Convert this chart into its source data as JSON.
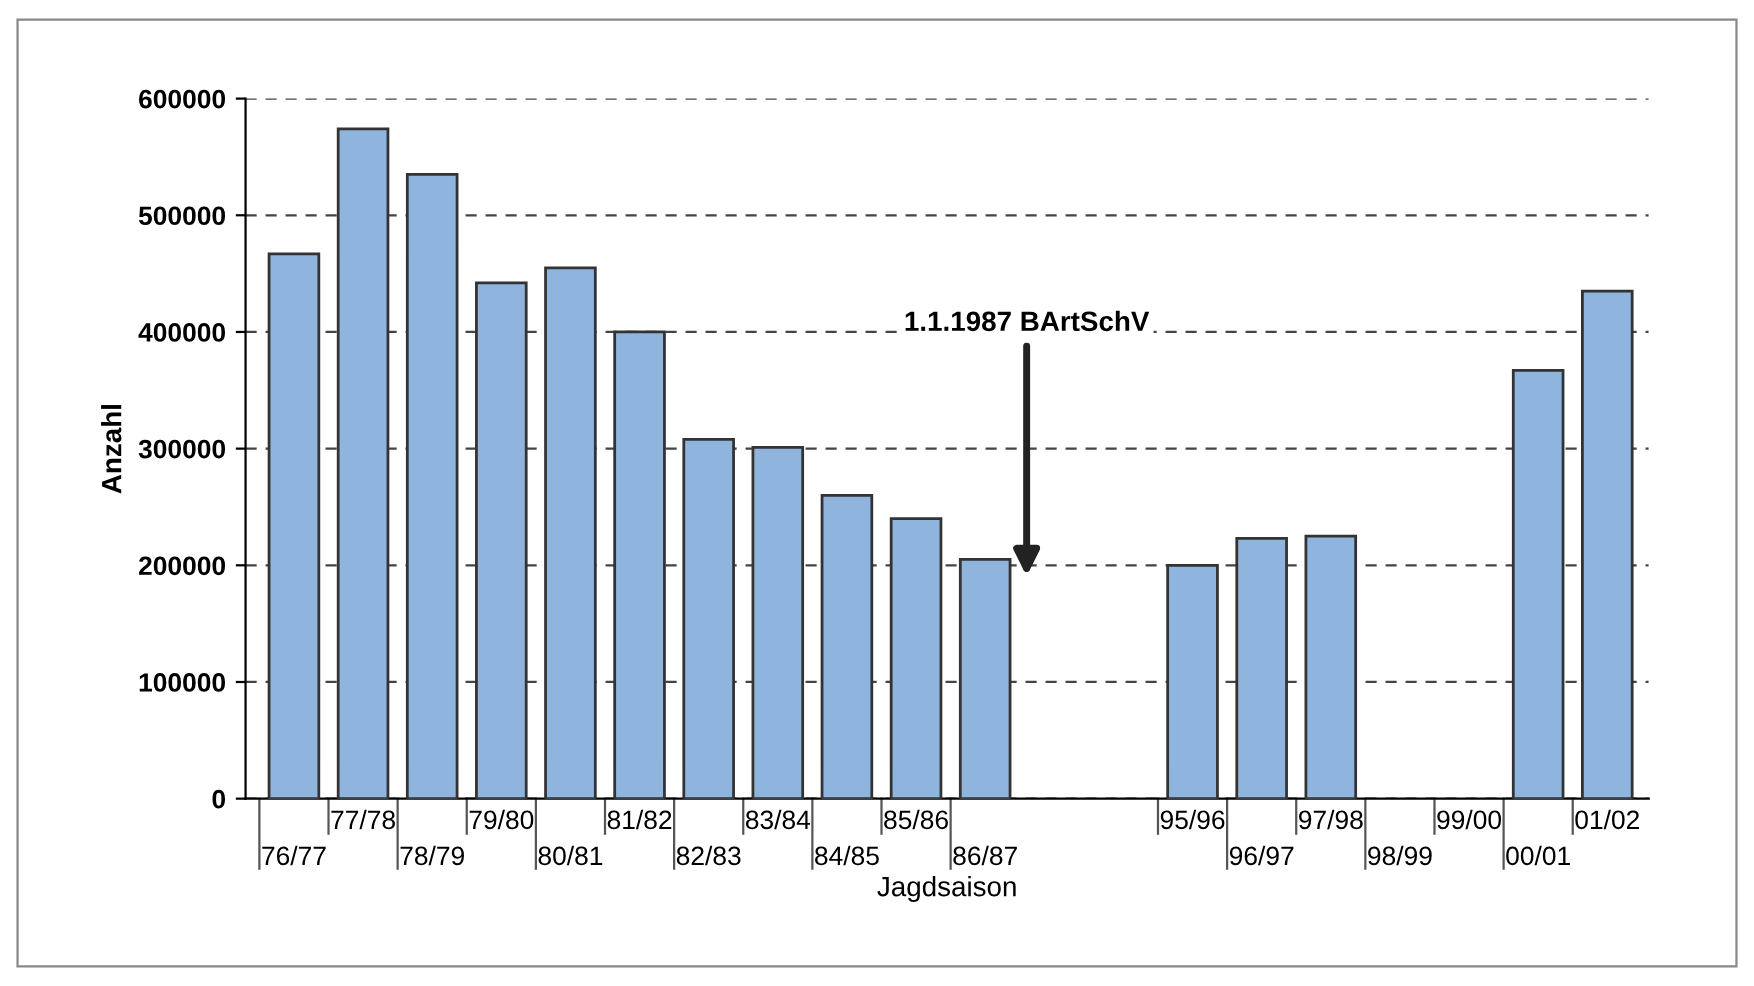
{
  "chart_data": {
    "type": "bar",
    "xlabel": "Jagdsaison",
    "ylabel": "Anzahl",
    "categories": [
      "76/77",
      "77/78",
      "78/79",
      "79/80",
      "80/81",
      "81/82",
      "82/83",
      "83/84",
      "84/85",
      "85/86",
      "86/87",
      null,
      null,
      "95/96",
      "96/97",
      "97/98",
      "98/99",
      "99/00",
      "00/01",
      "01/02"
    ],
    "values": [
      467000,
      574000,
      535000,
      442000,
      455000,
      400000,
      308000,
      301000,
      260000,
      240000,
      205000,
      null,
      null,
      200000,
      223000,
      225000,
      null,
      null,
      367000,
      435000
    ],
    "color": "#8fb4dd",
    "ylim": [
      0,
      600000
    ],
    "yticks": [
      0,
      100000,
      200000,
      300000,
      400000,
      500000,
      600000
    ],
    "grid": "y",
    "annotations": [
      "1.1.1987 BArtSchV"
    ]
  }
}
